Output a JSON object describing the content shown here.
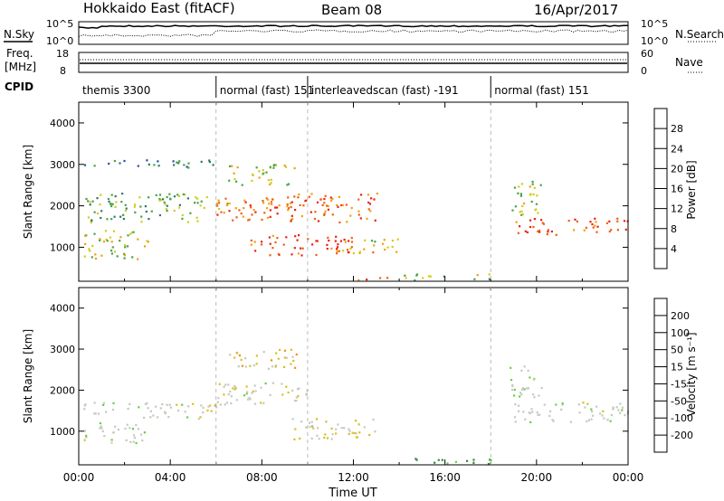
{
  "header": {
    "station": "Hokkaido East (fitACF)",
    "beam": "Beam 08",
    "date": "16/Apr/2017"
  },
  "params": {
    "nsky_label": "N.Sky",
    "nsearch_label": "N.Search",
    "freq_label_1": "Freq.",
    "freq_label_2": "[MHz]",
    "nave_label": "Nave",
    "cpid_label": "CPID",
    "nsky_ticks": [
      "10^5",
      "10^0"
    ],
    "nsearch_ticks": [
      "10^5",
      "10^0"
    ],
    "freq_ticks": [
      "18",
      "8"
    ],
    "nave_ticks": [
      "60",
      "0"
    ],
    "cpid_segments": [
      {
        "label": "themis 3300",
        "start": 0,
        "end": 6
      },
      {
        "label": "normal (fast) 151",
        "start": 6,
        "end": 10
      },
      {
        "label": "interleavedscan (fast) -191",
        "start": 10,
        "end": 18
      },
      {
        "label": "normal (fast) 151",
        "start": 18,
        "end": 24
      }
    ]
  },
  "panels": {
    "ylabel": "Slant Range [km]",
    "xlabel": "Time UT",
    "xticks": [
      "00:00",
      "04:00",
      "08:00",
      "12:00",
      "16:00",
      "20:00",
      "00:00"
    ],
    "yticks": [
      "1000",
      "2000",
      "3000",
      "4000"
    ]
  },
  "colorbars": {
    "power": {
      "label": "Power [dB]",
      "ticks": [
        "4",
        "8",
        "12",
        "16",
        "20",
        "24",
        "28"
      ]
    },
    "velocity": {
      "label": "Velocity [m s⁻¹]",
      "ticks": [
        "200",
        "100",
        "50",
        "15",
        "-15",
        "-50",
        "-100",
        "-200"
      ]
    }
  },
  "colors": {
    "power_scale": [
      "#1818ff",
      "#2a4db0",
      "#2e7a68",
      "#4aa24a",
      "#d2cc1c",
      "#f0a010",
      "#f06010",
      "#ee2010"
    ],
    "velocity_scale": [
      "#1c1ca0",
      "#2c6aa8",
      "#2f8a3a",
      "#6ad040",
      "#c8c8c0",
      "#d8c020",
      "#f09010",
      "#f05010",
      "#e81010"
    ]
  },
  "chart_data": [
    {
      "type": "heatmap",
      "title": "Power",
      "xlabel": "Time UT",
      "ylabel": "Slant Range [km]",
      "xlim": [
        0,
        24
      ],
      "ylim": [
        180,
        4500
      ],
      "colorbar": "Power [dB]",
      "blobs": [
        {
          "t": [
            0.2,
            5.9
          ],
          "r": [
            2900,
            3100
          ],
          "v": 10
        },
        {
          "t": [
            0.2,
            5.9
          ],
          "r": [
            1600,
            2300
          ],
          "v": 14
        },
        {
          "t": [
            0.2,
            3.0
          ],
          "r": [
            700,
            1400
          ],
          "v": 18
        },
        {
          "t": [
            6.0,
            9.5
          ],
          "r": [
            1650,
            2100
          ],
          "v": 27
        },
        {
          "t": [
            6.0,
            9.0
          ],
          "r": [
            1900,
            2200
          ],
          "v": 23
        },
        {
          "t": [
            6.5,
            9.5
          ],
          "r": [
            2500,
            3000
          ],
          "v": 18
        },
        {
          "t": [
            7.5,
            12.0
          ],
          "r": [
            800,
            1300
          ],
          "v": 28
        },
        {
          "t": [
            9.0,
            13.0
          ],
          "r": [
            1600,
            2300
          ],
          "v": 26
        },
        {
          "t": [
            11.0,
            14.0
          ],
          "r": [
            850,
            1200
          ],
          "v": 20
        },
        {
          "t": [
            14.0,
            18.0
          ],
          "r": [
            200,
            350
          ],
          "v": 16
        },
        {
          "t": [
            12.0,
            14.0
          ],
          "r": [
            200,
            300
          ],
          "v": 28
        },
        {
          "t": [
            19.0,
            24.0
          ],
          "r": [
            1300,
            1700
          ],
          "v": 28
        },
        {
          "t": [
            18.8,
            20.2
          ],
          "r": [
            1700,
            2600
          ],
          "v": 16
        }
      ]
    },
    {
      "type": "heatmap",
      "title": "Velocity",
      "xlabel": "Time UT",
      "ylabel": "Slant Range [km]",
      "xlim": [
        0,
        24
      ],
      "ylim": [
        180,
        4500
      ],
      "colorbar": "Velocity [m s⁻¹]",
      "blobs": [
        {
          "t": [
            0.2,
            6.0
          ],
          "r": [
            1300,
            1700
          ],
          "v": 0
        },
        {
          "t": [
            0.2,
            3.0
          ],
          "r": [
            700,
            1200
          ],
          "v": 0
        },
        {
          "t": [
            6.0,
            10.0
          ],
          "r": [
            1600,
            2200
          ],
          "v": 0
        },
        {
          "t": [
            6.5,
            9.5
          ],
          "r": [
            2500,
            3000
          ],
          "v": -20
        },
        {
          "t": [
            9.0,
            13.0
          ],
          "r": [
            800,
            1300
          ],
          "v": -10
        },
        {
          "t": [
            14.0,
            18.0
          ],
          "r": [
            200,
            350
          ],
          "v": 40
        },
        {
          "t": [
            19.0,
            24.0
          ],
          "r": [
            1200,
            1700
          ],
          "v": 0
        },
        {
          "t": [
            18.8,
            20.2
          ],
          "r": [
            1800,
            2600
          ],
          "v": 10
        }
      ]
    }
  ]
}
